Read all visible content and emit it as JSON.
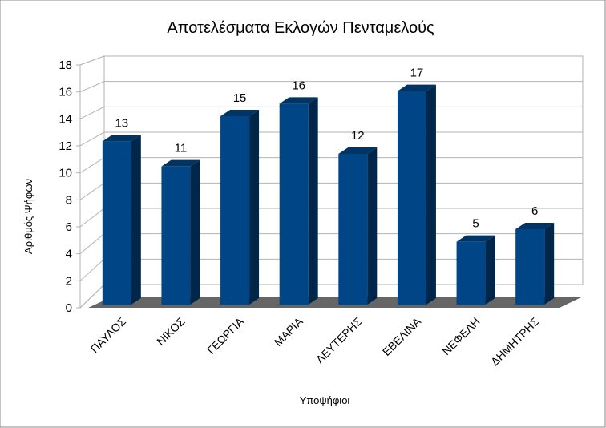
{
  "chart_data": {
    "type": "bar3d",
    "title": "Αποτελέσματα Εκλογών Πενταμελούς",
    "x_label": "Υποψήφιοι",
    "y_label": "Αριθμός Ψήφων",
    "categories": [
      "ΠΑΥΛΟΣ",
      "ΝΙΚΟΣ",
      "ΓΕΩΡΓΙΑ",
      "ΜΑΡΙΑ",
      "ΛΕΥΤΕΡΗΣ",
      "ΕΒΕΛΙΝΑ",
      "ΝΕΦΕΛΗ",
      "ΔΗΜΗΤΡΗΣ"
    ],
    "values": [
      13,
      11,
      15,
      16,
      12,
      17,
      5,
      6
    ],
    "color": "#004586",
    "ylim": [
      0,
      18
    ],
    "yticks": [
      0,
      2,
      4,
      6,
      8,
      10,
      12,
      14,
      16,
      18
    ],
    "grid": true
  }
}
